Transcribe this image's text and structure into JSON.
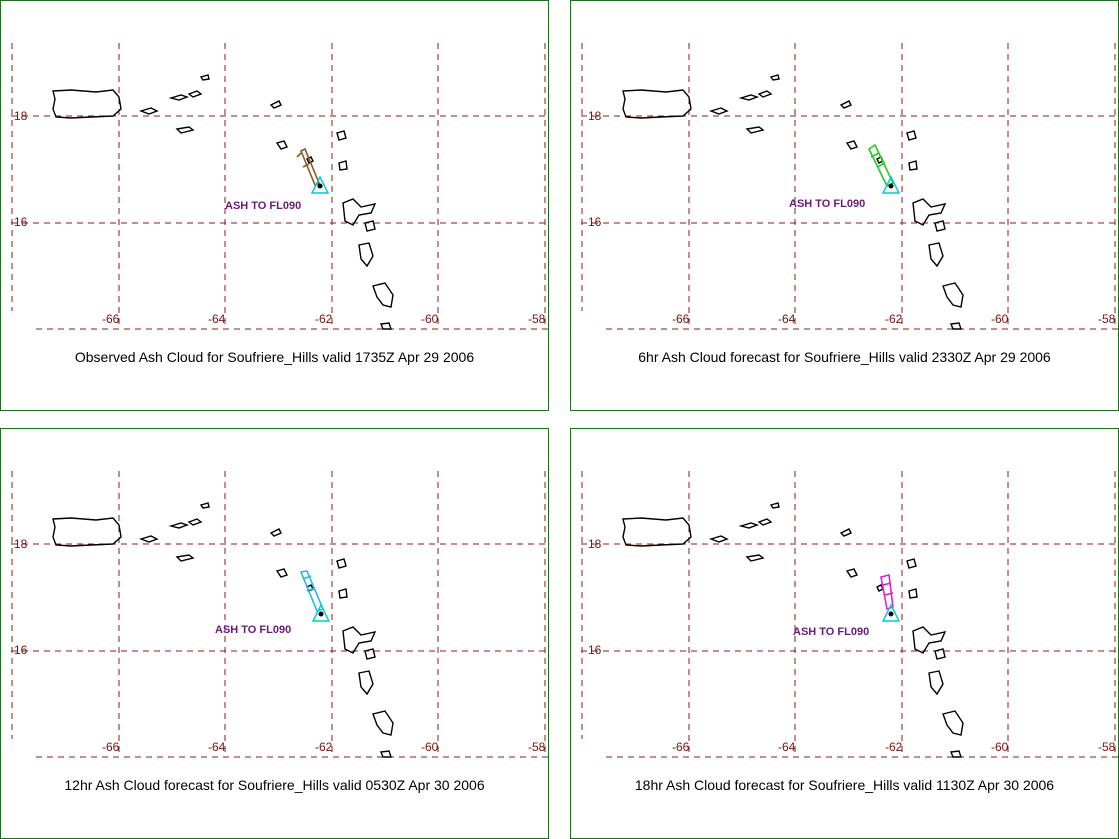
{
  "colors": {
    "panel_border": "#1f6f1f",
    "grid": "#8b1a1a",
    "coast": "#000000",
    "volcano_marker": "#00cccc",
    "ash_label": "#6a1a7a",
    "axis_label": "#7a1010"
  },
  "panels": [
    {
      "caption": "Observed Ash Cloud for Soufriere_Hills valid 1735Z Apr 29 2006",
      "ash_label": "ASH TO FL090",
      "cloud_color": "#8b5a2b",
      "lat_labels": [
        "18",
        "16"
      ],
      "lon_labels": [
        "-66",
        "-64",
        "-62",
        "-60",
        "-58"
      ]
    },
    {
      "caption": "6hr Ash Cloud forecast for Soufriere_Hills valid 2330Z Apr 29 2006",
      "ash_label": "ASH TO FL090",
      "cloud_color": "#22cc22",
      "lat_labels": [
        "18",
        "16"
      ],
      "lon_labels": [
        "-66",
        "-64",
        "-62",
        "-60",
        "-58"
      ]
    },
    {
      "caption": "12hr Ash Cloud forecast for Soufriere_Hills valid 0530Z Apr 30 2006",
      "ash_label": "ASH TO FL090",
      "cloud_color": "#22bbdd",
      "lat_labels": [
        "18",
        "16"
      ],
      "lon_labels": [
        "-66",
        "-64",
        "-62",
        "-60",
        "-58"
      ]
    },
    {
      "caption": "18hr Ash Cloud forecast for Soufriere_Hills valid 1130Z Apr 30 2006",
      "ash_label": "ASH TO FL090",
      "cloud_color": "#dd22dd",
      "lat_labels": [
        "18",
        "16"
      ],
      "lon_labels": [
        "-66",
        "-64",
        "-62",
        "-60",
        "-58"
      ]
    }
  ]
}
